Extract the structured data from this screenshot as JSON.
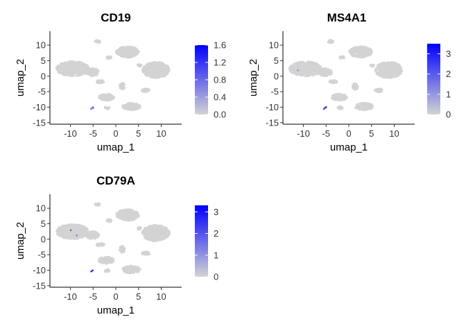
{
  "chart_data": [
    {
      "type": "scatter",
      "title": "CD19",
      "xlabel": "umap_1",
      "ylabel": "umap_2",
      "xlim": [
        -14.5,
        14.5
      ],
      "ylim": [
        -15.5,
        14.5
      ],
      "xticks": [
        -10,
        -5,
        0,
        5,
        10
      ],
      "yticks": [
        10,
        5,
        0,
        -5,
        -10,
        -15
      ],
      "grid": false,
      "legend_position": "right",
      "color_scale": {
        "low": "#d3d3d3",
        "high": "#0000ff",
        "min": 0.0,
        "max": 1.6,
        "tick_values": [
          0.0,
          0.4,
          0.8,
          1.2,
          1.6
        ],
        "tick_labels": [
          "0.0",
          "0.4",
          "0.8",
          "1.2",
          "1.6"
        ]
      },
      "highlights": [
        {
          "x": -5.0,
          "y": -10.2,
          "value": 1.5
        },
        {
          "x": -5.4,
          "y": -10.5,
          "value": 0.9
        },
        {
          "x": -5.1,
          "y": -10.0,
          "value": 0.6
        }
      ]
    },
    {
      "type": "scatter",
      "title": "MS4A1",
      "xlabel": "umap_1",
      "ylabel": "umap_2",
      "xlim": [
        -14.5,
        14.5
      ],
      "ylim": [
        -15.5,
        14.5
      ],
      "xticks": [
        -10,
        -5,
        0,
        5,
        10
      ],
      "yticks": [
        10,
        5,
        0,
        -5,
        -10,
        -15
      ],
      "grid": false,
      "legend_position": "right",
      "color_scale": {
        "low": "#d3d3d3",
        "high": "#0000ff",
        "min": 0,
        "max": 3.5,
        "tick_values": [
          0,
          1,
          2,
          3
        ],
        "tick_labels": [
          "0",
          "1",
          "2",
          "3"
        ]
      },
      "highlights": [
        {
          "x": -5.0,
          "y": -10.0,
          "value": 3.2
        },
        {
          "x": -5.3,
          "y": -10.3,
          "value": 2.8
        },
        {
          "x": -5.5,
          "y": -10.6,
          "value": 2.0
        },
        {
          "x": -11.2,
          "y": 1.9,
          "value": 1.2
        }
      ]
    },
    {
      "type": "scatter",
      "title": "CD79A",
      "xlabel": "umap_1",
      "ylabel": "umap_2",
      "xlim": [
        -14.5,
        14.5
      ],
      "ylim": [
        -15.5,
        14.5
      ],
      "xticks": [
        -10,
        -5,
        0,
        5,
        10
      ],
      "yticks": [
        10,
        5,
        0,
        -5,
        -10,
        -15
      ],
      "grid": false,
      "legend_position": "right",
      "color_scale": {
        "low": "#d3d3d3",
        "high": "#0000ff",
        "min": 0,
        "max": 3.3,
        "tick_values": [
          0,
          1,
          2,
          3
        ],
        "tick_labels": [
          "0",
          "1",
          "2",
          "3"
        ]
      },
      "highlights": [
        {
          "x": -5.1,
          "y": -10.1,
          "value": 3.1
        },
        {
          "x": -5.4,
          "y": -10.4,
          "value": 2.6
        },
        {
          "x": -9.9,
          "y": 2.9,
          "value": 1.8
        },
        {
          "x": -8.6,
          "y": 1.2,
          "value": 1.4
        }
      ]
    }
  ]
}
